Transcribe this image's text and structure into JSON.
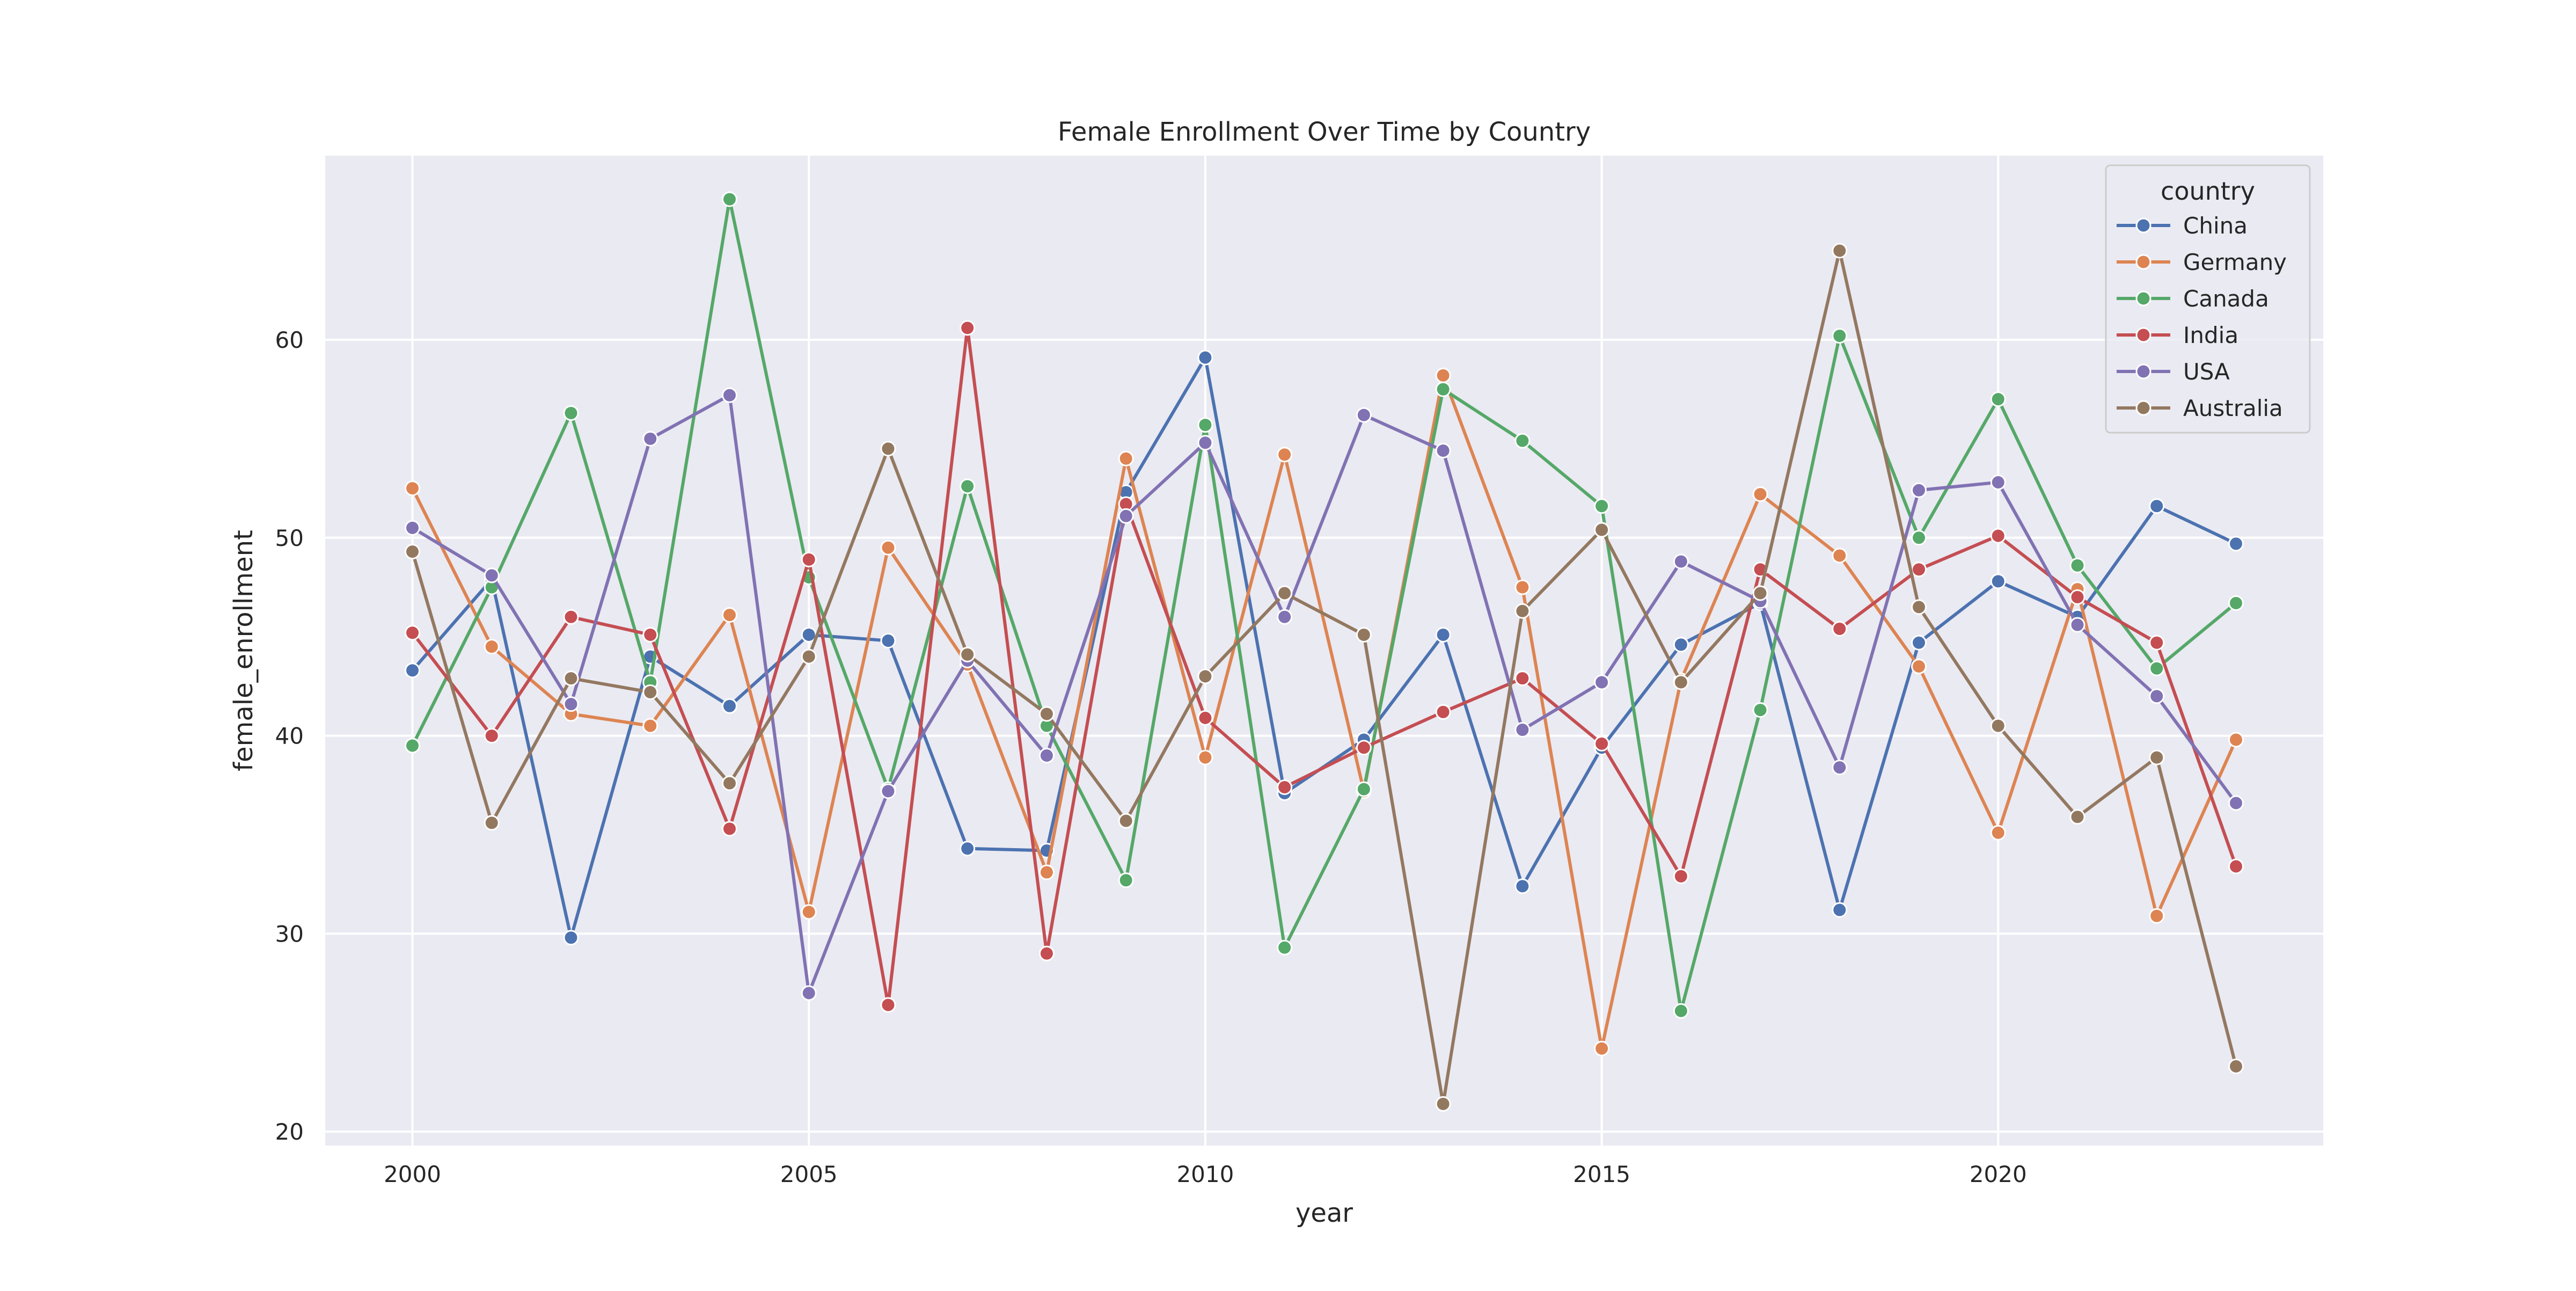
{
  "chart_data": {
    "type": "line",
    "title": "Female Enrollment Over Time by Country",
    "xlabel": "year",
    "ylabel": "female_enrollment",
    "xlim": [
      1998.9,
      2024.1
    ],
    "ylim": [
      19.3,
      69.3
    ],
    "xticks": [
      2000,
      2005,
      2010,
      2015,
      2020
    ],
    "yticks": [
      20,
      30,
      40,
      50,
      60
    ],
    "grid": true,
    "legend": {
      "title": "country",
      "placement": "top-right"
    },
    "x": [
      2000,
      2001,
      2002,
      2003,
      2004,
      2005,
      2006,
      2007,
      2008,
      2009,
      2010,
      2011,
      2012,
      2013,
      2014,
      2015,
      2016,
      2017,
      2018,
      2019,
      2020,
      2021,
      2022,
      2023
    ],
    "series": [
      {
        "name": "China",
        "color": "#4c72b0",
        "values": [
          43.3,
          47.9,
          29.8,
          44.0,
          41.5,
          45.1,
          44.8,
          34.3,
          34.2,
          52.3,
          59.1,
          37.1,
          39.8,
          45.1,
          32.4,
          39.4,
          44.6,
          46.7,
          31.2,
          44.7,
          47.8,
          46.0,
          51.6,
          49.7
        ]
      },
      {
        "name": "Germany",
        "color": "#dd8452",
        "values": [
          52.5,
          44.5,
          41.1,
          40.5,
          46.1,
          31.1,
          49.5,
          43.6,
          33.1,
          54.0,
          38.9,
          54.2,
          37.2,
          58.2,
          47.5,
          24.2,
          42.8,
          52.2,
          49.1,
          43.5,
          35.1,
          47.4,
          30.9,
          39.8
        ]
      },
      {
        "name": "Canada",
        "color": "#55a868",
        "values": [
          39.5,
          47.5,
          56.3,
          42.7,
          67.1,
          48.0,
          37.3,
          52.6,
          40.5,
          32.7,
          55.7,
          29.3,
          37.3,
          57.5,
          54.9,
          51.6,
          26.1,
          41.3,
          60.2,
          50.0,
          57.0,
          48.6,
          43.4,
          46.7
        ]
      },
      {
        "name": "India",
        "color": "#c44e52",
        "values": [
          45.2,
          40.0,
          46.0,
          45.1,
          35.3,
          48.9,
          26.4,
          60.6,
          29.0,
          51.7,
          40.9,
          37.4,
          39.4,
          41.2,
          42.9,
          39.6,
          32.9,
          48.4,
          45.4,
          48.4,
          50.1,
          47.0,
          44.7,
          33.4
        ]
      },
      {
        "name": "USA",
        "color": "#8172b3",
        "values": [
          50.5,
          48.1,
          41.6,
          55.0,
          57.2,
          27.0,
          37.2,
          43.8,
          39.0,
          51.1,
          54.8,
          46.0,
          56.2,
          54.4,
          40.3,
          42.7,
          48.8,
          46.8,
          38.4,
          52.4,
          52.8,
          45.6,
          42.0,
          36.6
        ]
      },
      {
        "name": "Australia",
        "color": "#937860",
        "values": [
          49.3,
          35.6,
          42.9,
          42.2,
          37.6,
          44.0,
          54.5,
          44.1,
          41.1,
          35.7,
          43.0,
          47.2,
          45.1,
          21.4,
          46.3,
          50.4,
          42.7,
          47.2,
          64.5,
          46.5,
          40.5,
          35.9,
          38.9,
          23.3
        ]
      }
    ]
  }
}
